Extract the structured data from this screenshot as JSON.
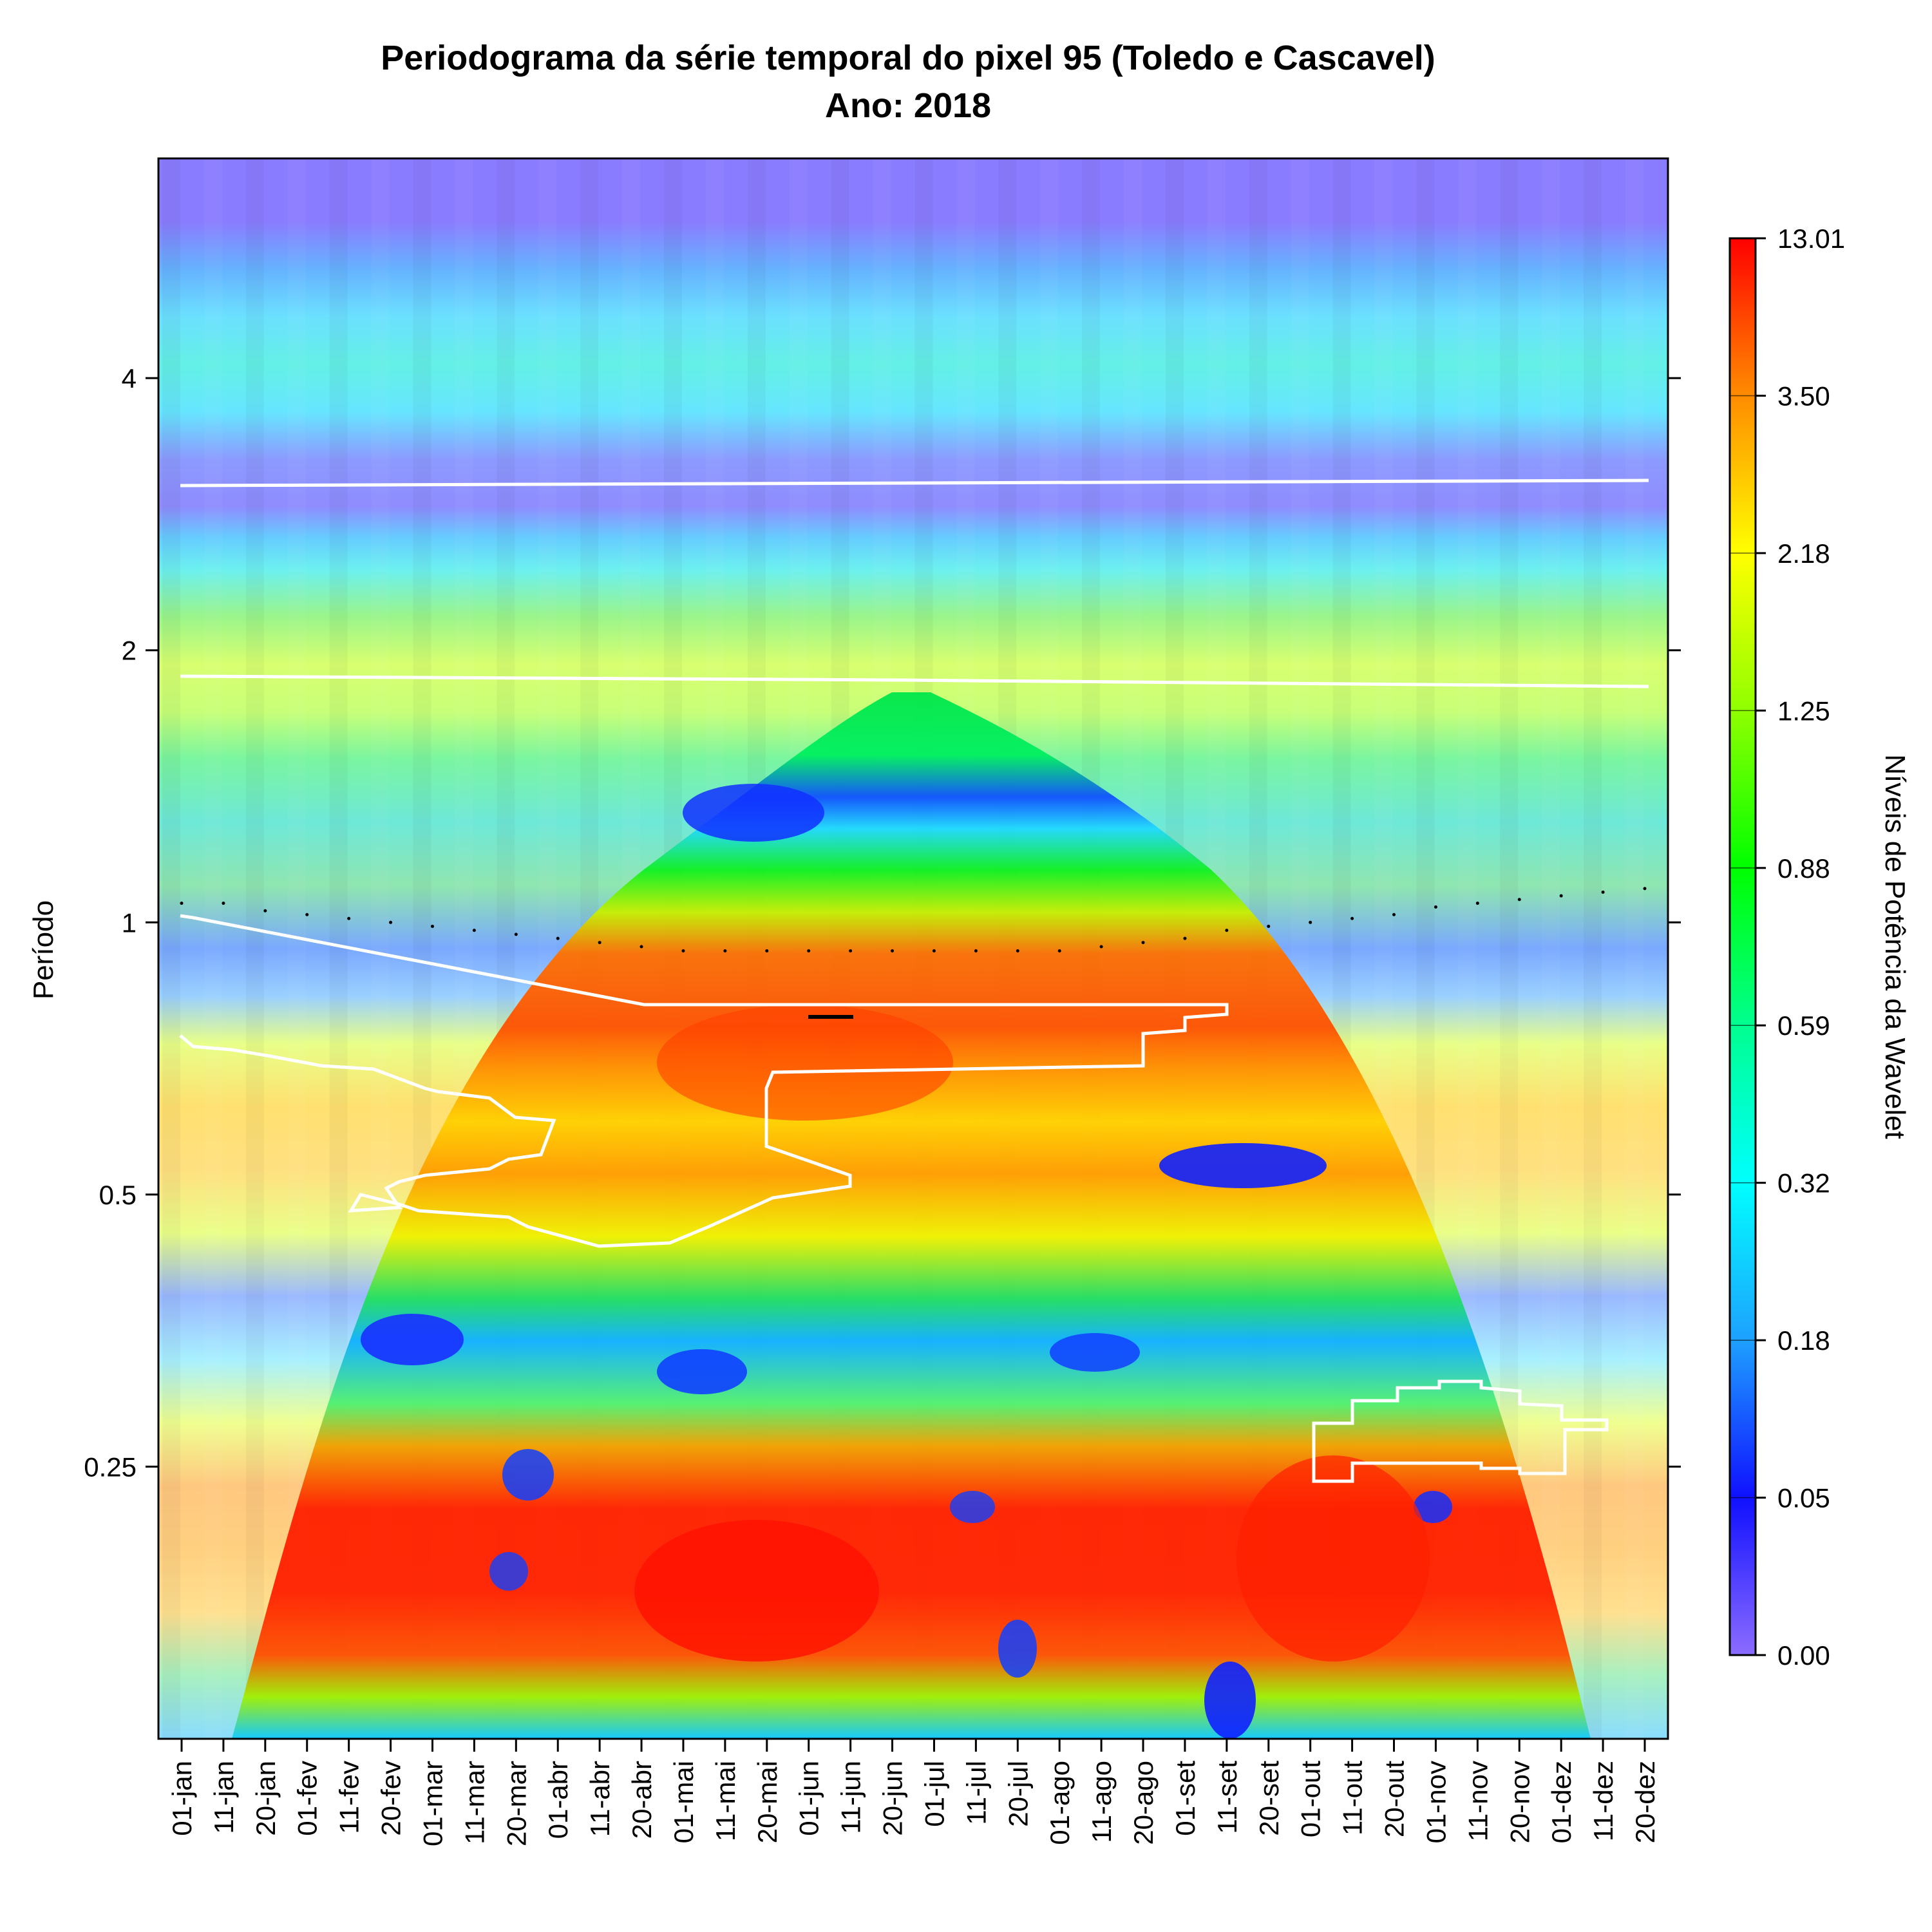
{
  "chart_data": {
    "type": "heatmap",
    "title": "Periodograma da série temporal do pixel 95 (Toledo e Cascavel)",
    "subtitle": "Ano: 2018",
    "ylabel": "Período",
    "colorbar_label": "Níveis de Potência da Wavelet",
    "y_scale": "log2",
    "ylim": [
      0.125,
      7.0
    ],
    "x_ticks": [
      "01-jan",
      "11-jan",
      "20-jan",
      "01-fev",
      "11-fev",
      "20-fev",
      "01-mar",
      "11-mar",
      "20-mar",
      "01-abr",
      "11-abr",
      "20-abr",
      "01-mai",
      "11-mai",
      "20-mai",
      "01-jun",
      "11-jun",
      "20-jun",
      "01-jul",
      "11-jul",
      "20-jul",
      "01-ago",
      "11-ago",
      "20-ago",
      "01-set",
      "11-set",
      "20-set",
      "01-out",
      "11-out",
      "20-out",
      "01-nov",
      "11-nov",
      "20-nov",
      "01-dez",
      "11-dez",
      "20-dez"
    ],
    "y_ticks": [
      {
        "value": 0.25,
        "label": "0.25"
      },
      {
        "value": 0.5,
        "label": "0.5"
      },
      {
        "value": 1,
        "label": "1"
      },
      {
        "value": 2,
        "label": "2"
      },
      {
        "value": 4,
        "label": "4"
      }
    ],
    "colorbar_levels": [
      "0.00",
      "0.05",
      "0.18",
      "0.32",
      "0.59",
      "0.88",
      "1.25",
      "2.18",
      "3.50",
      "13.01"
    ],
    "colorbar_colors": [
      "#8c6cff",
      "#1010ff",
      "#1ea0ff",
      "#00ffff",
      "#00ff90",
      "#00ff00",
      "#90ff00",
      "#ffff00",
      "#ff8c00",
      "#ff0000"
    ],
    "power_bands": [
      {
        "period": 6.0,
        "level": 0.0
      },
      {
        "period": 3.0,
        "level": 2.0
      },
      {
        "period": 2.0,
        "level": 0.4
      },
      {
        "period": 1.5,
        "level": 0.0
      },
      {
        "period": 1.0,
        "level": 3.5
      },
      {
        "period": 0.6,
        "level": 4.0
      },
      {
        "period": 0.4,
        "level": 0.3
      },
      {
        "period": 0.2,
        "level": 9.0
      }
    ],
    "cone_of_influence_peak_period": 2.1,
    "ridge_period": [
      1.05,
      1.05,
      1.03,
      1.02,
      1.01,
      1.0,
      0.99,
      0.98,
      0.97,
      0.96,
      0.95,
      0.94,
      0.93,
      0.93,
      0.93,
      0.93,
      0.93,
      0.93,
      0.93,
      0.93,
      0.93,
      0.93,
      0.94,
      0.95,
      0.96,
      0.98,
      0.99,
      1.0,
      1.01,
      1.02,
      1.04,
      1.05,
      1.06,
      1.07,
      1.08,
      1.09
    ]
  }
}
